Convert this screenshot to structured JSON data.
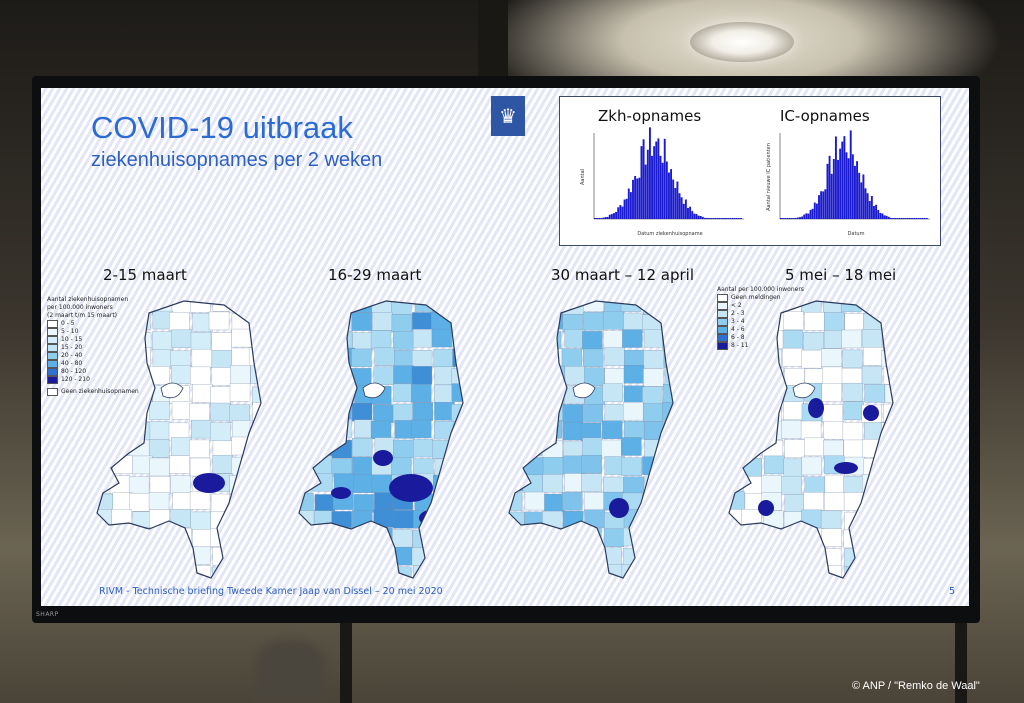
{
  "slide": {
    "title": "COVID-19 uitbraak",
    "subtitle": "ziekenhuisopnames per 2 weken",
    "footer": "RIVM - Technische briefing Tweede Kamer Jaap van Dissel – 20 mei 2020",
    "page_number": "5"
  },
  "inset": {
    "left_title": "Zkh-opnames",
    "right_title": "IC-opnames",
    "left_xlabel": "Datum ziekenhuisopname",
    "left_ylabel": "Aantal",
    "right_xlabel": "Datum",
    "right_ylabel": "Aantal nieuwe IC patienten"
  },
  "maps": [
    {
      "label": "2-15 maart"
    },
    {
      "label": "16-29 maart"
    },
    {
      "label": "30 maart – 12 april"
    },
    {
      "label": "5 mei – 18 mei"
    }
  ],
  "legend_left": {
    "title": "Aantal ziekenhuisopnamen",
    "subtitle": "per 100.000 inwoners",
    "period": "(2 maart t/m 15 maart)",
    "items": [
      "0 - 5",
      "5 - 10",
      "10 - 15",
      "15 - 20",
      "20 - 40",
      "40 - 80",
      "80 - 120",
      "120 - 210"
    ],
    "none_label": "Geen ziekenhuisopnamen"
  },
  "legend_right": {
    "title": "Aantal per 100.000 inwoners",
    "items": [
      "Geen meldingen",
      "< 2",
      "2 - 3",
      "3 - 4",
      "4 - 6",
      "6 - 8",
      "8 - 11"
    ]
  },
  "photo_credit": "©  ANP / \"Remko de Waal\"",
  "monitor_brand": "SHARP",
  "colors": {
    "title_blue": "#2b6bd6",
    "histogram_blue": "#1a1ad0",
    "map_dark": "#1a1a9c",
    "map_mid": "#3f8fd6",
    "map_light": "#a9d8f0"
  }
}
